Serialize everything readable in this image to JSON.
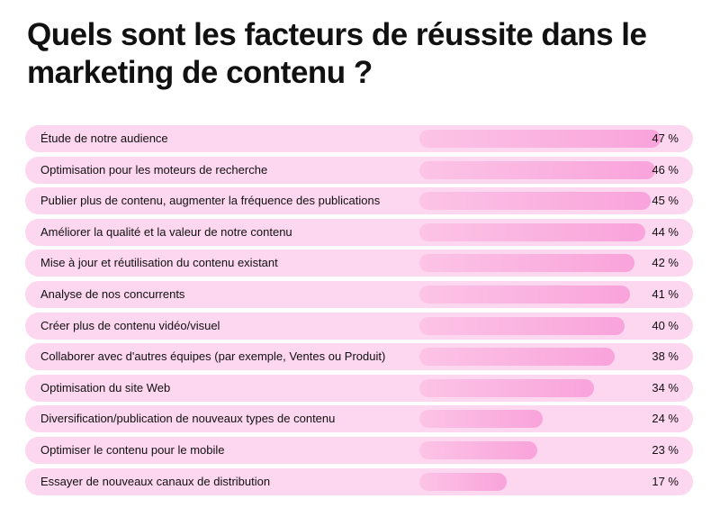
{
  "chart_data": {
    "type": "bar",
    "orientation": "horizontal",
    "title": "Quels sont les facteurs de réussite dans le marketing de contenu ?",
    "categories": [
      "Étude de notre audience",
      "Optimisation pour les moteurs de recherche",
      "Publier plus de contenu, augmenter la fréquence des publications",
      "Améliorer la qualité et la valeur de notre contenu",
      "Mise à jour et réutilisation du contenu existant",
      "Analyse de nos concurrents",
      "Créer plus de contenu vidéo/visuel",
      "Collaborer avec d'autres équipes (par exemple, Ventes ou Produit)",
      "Optimisation du site Web",
      "Diversification/publication de nouveaux types de contenu",
      "Optimiser le contenu pour le mobile",
      "Essayer de nouveaux canaux de distribution"
    ],
    "values": [
      47,
      46,
      45,
      44,
      42,
      41,
      40,
      38,
      34,
      24,
      23,
      17
    ],
    "value_labels": [
      "47 %",
      "46 %",
      "45 %",
      "44 %",
      "42 %",
      "41 %",
      "40 %",
      "38 %",
      "34 %",
      "24 %",
      "23 %",
      "17 %"
    ],
    "unit": "%",
    "xlim": [
      0,
      47
    ],
    "grid": false,
    "colors": {
      "row_background": "#fdd6ef",
      "bar_start": "#fcc4e6",
      "bar_end": "#f9a3db"
    }
  }
}
